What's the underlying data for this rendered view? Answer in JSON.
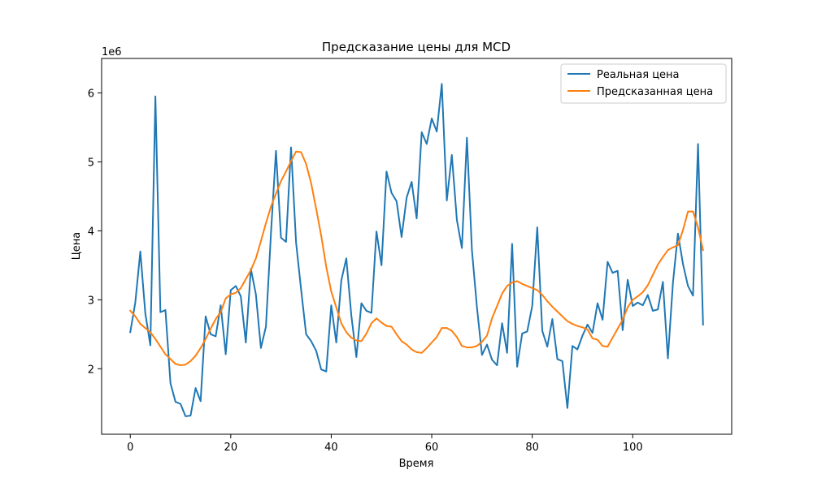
{
  "chart_data": {
    "type": "line",
    "title": "Предсказание цены для MCD",
    "xlabel": "Время",
    "ylabel": "Цена",
    "y_offset_label": "1e6",
    "xlim": [
      -5.7,
      119.7
    ],
    "ylim": [
      1.05,
      6.5
    ],
    "x_ticks": [
      0,
      20,
      40,
      60,
      80,
      100
    ],
    "y_ticks": [
      2,
      3,
      4,
      5,
      6
    ],
    "legend_position": "top-right",
    "grid": false,
    "series": [
      {
        "name": "Реальная цена",
        "color": "#1f77b4",
        "values": [
          2.53,
          2.96,
          3.7,
          2.8,
          2.34,
          5.95,
          2.82,
          2.85,
          1.79,
          1.52,
          1.49,
          1.31,
          1.32,
          1.72,
          1.53,
          2.76,
          2.5,
          2.47,
          2.92,
          2.21,
          3.14,
          3.2,
          3.05,
          2.38,
          3.45,
          3.08,
          2.3,
          2.61,
          3.96,
          5.16,
          3.9,
          3.84,
          5.21,
          3.83,
          3.15,
          2.5,
          2.4,
          2.26,
          1.99,
          1.96,
          2.92,
          2.38,
          3.28,
          3.6,
          2.77,
          2.17,
          2.95,
          2.84,
          2.81,
          3.99,
          3.5,
          4.86,
          4.55,
          4.43,
          3.91,
          4.48,
          4.71,
          4.18,
          5.43,
          5.26,
          5.63,
          5.44,
          6.13,
          4.44,
          5.1,
          4.16,
          3.75,
          5.35,
          3.72,
          2.89,
          2.2,
          2.35,
          2.13,
          2.05,
          2.66,
          2.23,
          3.81,
          2.03,
          2.51,
          2.54,
          2.91,
          4.05,
          2.55,
          2.32,
          2.72,
          2.14,
          2.11,
          1.43,
          2.33,
          2.28,
          2.48,
          2.64,
          2.52,
          2.95,
          2.71,
          3.55,
          3.39,
          3.42,
          2.56,
          3.29,
          2.91,
          2.96,
          2.92,
          3.07,
          2.84,
          2.86,
          3.26,
          2.15,
          3.24,
          3.96,
          3.52,
          3.2,
          3.06,
          5.26,
          2.64
        ]
      },
      {
        "name": "Предсказанная цена",
        "color": "#ff7f0e",
        "values": [
          2.84,
          2.76,
          2.65,
          2.59,
          2.53,
          2.43,
          2.32,
          2.21,
          2.14,
          2.07,
          2.05,
          2.06,
          2.11,
          2.19,
          2.3,
          2.43,
          2.58,
          2.72,
          2.82,
          3.02,
          3.08,
          3.1,
          3.17,
          3.3,
          3.43,
          3.6,
          3.85,
          4.11,
          4.35,
          4.54,
          4.72,
          4.86,
          5.01,
          5.15,
          5.14,
          4.97,
          4.69,
          4.32,
          3.93,
          3.48,
          3.12,
          2.89,
          2.66,
          2.53,
          2.45,
          2.41,
          2.4,
          2.51,
          2.66,
          2.73,
          2.67,
          2.62,
          2.61,
          2.5,
          2.4,
          2.35,
          2.28,
          2.24,
          2.23,
          2.3,
          2.38,
          2.46,
          2.59,
          2.59,
          2.55,
          2.46,
          2.33,
          2.31,
          2.31,
          2.33,
          2.39,
          2.48,
          2.73,
          2.91,
          3.09,
          3.2,
          3.25,
          3.27,
          3.23,
          3.2,
          3.17,
          3.14,
          3.07,
          2.98,
          2.9,
          2.83,
          2.76,
          2.69,
          2.65,
          2.62,
          2.6,
          2.57,
          2.44,
          2.42,
          2.33,
          2.32,
          2.45,
          2.58,
          2.71,
          2.89,
          3.0,
          3.05,
          3.11,
          3.21,
          3.36,
          3.51,
          3.62,
          3.72,
          3.76,
          3.79,
          4.01,
          4.28,
          4.28,
          4.05,
          3.72
        ]
      }
    ]
  }
}
